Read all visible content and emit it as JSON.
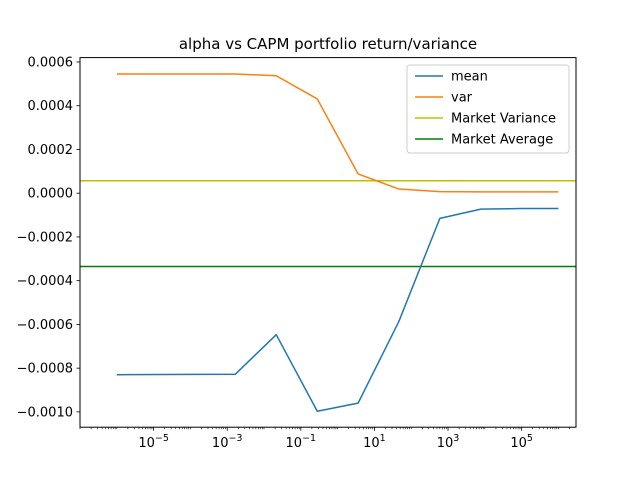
{
  "chart_data": {
    "type": "line",
    "title": "alpha vs CAPM portfolio return/variance",
    "xlabel": "",
    "ylabel": "",
    "xscale": "log",
    "xlim": [
      1e-07,
      3000000.0
    ],
    "ylim": [
      -0.00107,
      0.00062
    ],
    "grid": false,
    "legend_position": "top-right",
    "x_ticks": [
      {
        "value": 1e-05,
        "base": "10",
        "exp": "−5"
      },
      {
        "value": 0.001,
        "base": "10",
        "exp": "−3"
      },
      {
        "value": 0.1,
        "base": "10",
        "exp": "−1"
      },
      {
        "value": 10.0,
        "base": "10",
        "exp": "1"
      },
      {
        "value": 1000.0,
        "base": "10",
        "exp": "3"
      },
      {
        "value": 100000.0,
        "base": "10",
        "exp": "5"
      }
    ],
    "y_ticks": [
      {
        "value": 0.0006,
        "label": "0.0006"
      },
      {
        "value": 0.0004,
        "label": "0.0004"
      },
      {
        "value": 0.0002,
        "label": "0.0002"
      },
      {
        "value": 0.0,
        "label": "0.0000"
      },
      {
        "value": -0.0002,
        "label": "−0.0002"
      },
      {
        "value": -0.0004,
        "label": "−0.0004"
      },
      {
        "value": -0.0006,
        "label": "−0.0006"
      },
      {
        "value": -0.0008,
        "label": "−0.0008"
      },
      {
        "value": -0.001,
        "label": "−0.0010"
      }
    ],
    "x": [
      1e-06,
      1e-05,
      0.0001,
      0.001,
      0.01,
      0.1,
      1,
      10,
      100,
      1000,
      10000,
      100000,
      1000000
    ],
    "series": [
      {
        "name": "mean",
        "color": "#1f77b4",
        "x": [
          1e-06,
          0.00165,
          0.0215,
          0.28,
          3.6,
          46,
          600,
          7800,
          100000,
          1000000
        ],
        "values": [
          -0.00083,
          -0.000828,
          -0.000647,
          -0.000997,
          -0.00096,
          -0.000587,
          -0.000115,
          -7.3e-05,
          -7e-05,
          -7e-05
        ]
      },
      {
        "name": "var",
        "color": "#ff7f0e",
        "x": [
          1e-06,
          0.00165,
          0.0215,
          0.28,
          3.6,
          46,
          600,
          7800,
          100000,
          1000000
        ],
        "values": [
          0.000545,
          0.000545,
          0.000537,
          0.000431,
          8.8e-05,
          1.9e-05,
          7e-06,
          6e-06,
          6e-06,
          6e-06
        ]
      }
    ],
    "hlines": [
      {
        "name": "Market Variance",
        "color": "#bfbf00",
        "value": 5.67e-05
      },
      {
        "name": "Market Average",
        "color": "#008000",
        "value": -0.000335
      }
    ],
    "legend": [
      {
        "label": "mean",
        "color": "#1f77b4"
      },
      {
        "label": "var",
        "color": "#ff7f0e"
      },
      {
        "label": "Market Variance",
        "color": "#bfbf00"
      },
      {
        "label": "Market Average",
        "color": "#008000"
      }
    ]
  }
}
